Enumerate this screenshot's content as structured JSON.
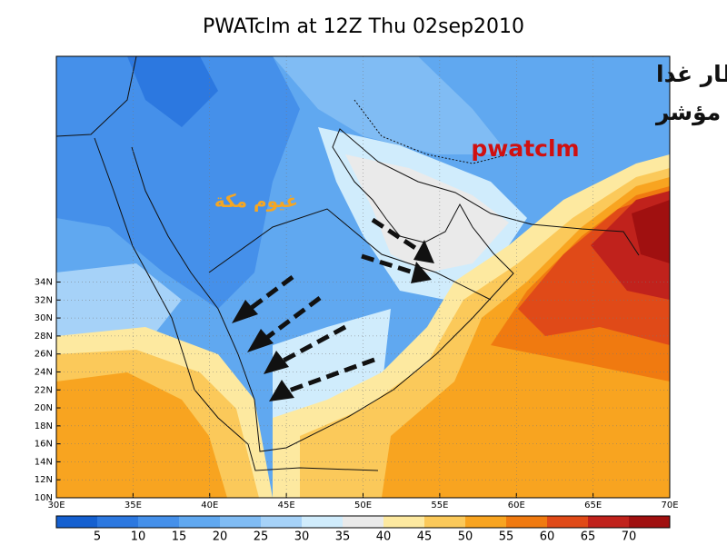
{
  "title": "PWATclm at 12Z Thu 02sep2010",
  "annotations": {
    "line1": "فرص سقوط الأمطار غدا",
    "line2": "بأذن الله يوضحها مؤشر",
    "index_name": "pwatclm",
    "clouds_label": "غيوم مكة"
  },
  "map": {
    "lat_labels": [
      "10N",
      "12N",
      "14N",
      "16N",
      "18N",
      "20N",
      "22N",
      "24N",
      "26N",
      "28N",
      "30N",
      "32N",
      "34N"
    ],
    "lon_labels": [
      "30E",
      "35E",
      "40E",
      "45E",
      "50E",
      "55E",
      "60E",
      "65E",
      "70E"
    ]
  },
  "colorbar": {
    "labels": [
      5,
      10,
      15,
      20,
      25,
      30,
      35,
      40,
      45,
      50,
      55,
      60,
      65,
      70
    ],
    "colors": [
      "#1560d0",
      "#2c78e0",
      "#4590ea",
      "#60a8f0",
      "#80bcf4",
      "#a6d2f8",
      "#d0ecfc",
      "#eaeaea",
      "#fde9a0",
      "#fbc95a",
      "#f8a420",
      "#f07a10",
      "#e04a18",
      "#c0221c",
      "#a01010"
    ]
  }
}
